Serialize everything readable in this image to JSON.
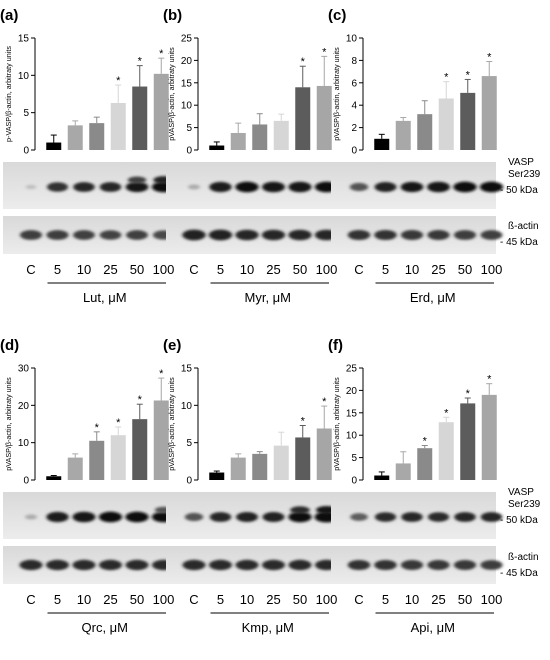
{
  "figure": {
    "labels_right": {
      "vasp_line1": "VASP",
      "vasp_line2": "Ser239",
      "kda50": "- 50 kDa",
      "actin": "ß-actin",
      "kda45": "- 45 kDa"
    },
    "x_categories": [
      "C",
      "5",
      "10",
      "25",
      "50",
      "100"
    ],
    "bar_colors": [
      "#000000",
      "#a8a8a8",
      "#8a8a8a",
      "#d6d6d6",
      "#5c5c5c",
      "#a6a6a6"
    ],
    "significance_mark": "*"
  },
  "chart_data": [
    {
      "panel": "(a)",
      "type": "bar",
      "ylabel": "p-VASP/β-actin, arbitraty units",
      "xlabel": "Lut, μM",
      "ylim": [
        0,
        15
      ],
      "yticks": [
        0,
        5,
        10,
        15
      ],
      "categories": [
        "C",
        "5",
        "10",
        "25",
        "50",
        "100"
      ],
      "values": [
        1.0,
        3.3,
        3.6,
        6.3,
        8.5,
        10.2
      ],
      "errors": [
        1.0,
        0.6,
        0.8,
        2.4,
        2.8,
        2.1
      ],
      "significant": [
        false,
        false,
        false,
        true,
        true,
        true
      ],
      "blot_vasp": [
        0.05,
        0.78,
        0.82,
        0.82,
        0.9,
        0.95
      ],
      "blot_vasp_upper": [
        0,
        0,
        0,
        0,
        0.7,
        0.85
      ],
      "blot_actin": [
        0.8,
        0.8,
        0.78,
        0.76,
        0.78,
        0.72
      ]
    },
    {
      "panel": "(b)",
      "type": "bar",
      "ylabel": "pVASP/β-actin, arbitraty units",
      "xlabel": "Myr, μM",
      "ylim": [
        0,
        25
      ],
      "yticks": [
        0,
        5,
        10,
        15,
        20,
        25
      ],
      "categories": [
        "C",
        "5",
        "10",
        "25",
        "50",
        "100"
      ],
      "values": [
        1.0,
        3.8,
        5.7,
        6.5,
        14.0,
        14.3
      ],
      "errors": [
        0.8,
        2.2,
        2.4,
        1.5,
        4.7,
        6.6
      ],
      "significant": [
        false,
        false,
        false,
        false,
        true,
        true
      ],
      "blot_vasp": [
        0.15,
        0.88,
        0.95,
        0.92,
        0.93,
        0.95
      ],
      "blot_vasp_upper": [
        0,
        0,
        0,
        0,
        0,
        0
      ],
      "blot_actin": [
        0.95,
        0.95,
        0.93,
        0.93,
        0.93,
        0.93
      ]
    },
    {
      "panel": "(c)",
      "type": "bar",
      "ylabel": "pVASP/β-actin, arbitraty units",
      "xlabel": "Erd, μM",
      "ylim": [
        0,
        10
      ],
      "yticks": [
        0,
        2,
        4,
        6,
        8,
        10
      ],
      "categories": [
        "C",
        "5",
        "10",
        "25",
        "50",
        "100"
      ],
      "values": [
        1.0,
        2.6,
        3.2,
        4.6,
        5.1,
        6.6
      ],
      "errors": [
        0.4,
        0.3,
        1.2,
        1.5,
        1.2,
        1.3
      ],
      "significant": [
        false,
        false,
        false,
        true,
        true,
        true
      ],
      "blot_vasp": [
        0.6,
        0.85,
        0.9,
        0.92,
        0.95,
        0.95
      ],
      "blot_vasp_upper": [
        0,
        0,
        0,
        0,
        0,
        0
      ],
      "blot_actin": [
        0.85,
        0.85,
        0.82,
        0.82,
        0.8,
        0.78
      ]
    },
    {
      "panel": "(d)",
      "type": "bar",
      "ylabel": "pVASP/β-actin, arbitraty units",
      "xlabel": "Qrc, μM",
      "ylim": [
        0,
        30
      ],
      "yticks": [
        0,
        10,
        20,
        30
      ],
      "categories": [
        "C",
        "5",
        "10",
        "25",
        "50",
        "100"
      ],
      "values": [
        1.0,
        6.0,
        10.5,
        12.0,
        16.3,
        21.3
      ],
      "errors": [
        0.2,
        1.0,
        2.4,
        2.2,
        4.0,
        6.0
      ],
      "significant": [
        false,
        false,
        true,
        true,
        true,
        true
      ],
      "blot_vasp": [
        0.15,
        0.88,
        0.92,
        0.95,
        0.95,
        0.95
      ],
      "blot_vasp_upper": [
        0,
        0,
        0,
        0,
        0,
        0.6
      ],
      "blot_actin": [
        0.9,
        0.9,
        0.9,
        0.9,
        0.9,
        0.9
      ]
    },
    {
      "panel": "(e)",
      "type": "bar",
      "ylabel": "pVASP/β-actin, arbitraty units",
      "xlabel": "Kmp, μM",
      "ylim": [
        0,
        15
      ],
      "yticks": [
        0,
        5,
        10,
        15
      ],
      "categories": [
        "C",
        "5",
        "10",
        "25",
        "50",
        "100"
      ],
      "values": [
        1.0,
        3.0,
        3.5,
        4.6,
        5.7,
        6.9
      ],
      "errors": [
        0.2,
        0.5,
        0.3,
        1.8,
        1.6,
        3.0
      ],
      "significant": [
        false,
        false,
        false,
        false,
        true,
        true
      ],
      "blot_vasp": [
        0.6,
        0.82,
        0.85,
        0.85,
        0.95,
        0.98
      ],
      "blot_vasp_upper": [
        0,
        0,
        0,
        0,
        0.8,
        0.9
      ],
      "blot_actin": [
        0.9,
        0.9,
        0.9,
        0.9,
        0.9,
        0.9
      ]
    },
    {
      "panel": "(f)",
      "type": "bar",
      "ylabel": "pVASP/β-actin, arbitraty units",
      "xlabel": "Api, μM",
      "ylim": [
        0,
        25
      ],
      "yticks": [
        0,
        5,
        10,
        15,
        20,
        25
      ],
      "categories": [
        "C",
        "5",
        "10",
        "25",
        "50",
        "100"
      ],
      "values": [
        1.0,
        3.7,
        7.1,
        12.9,
        17.1,
        19.0
      ],
      "errors": [
        0.8,
        2.6,
        0.6,
        1.1,
        1.2,
        2.5
      ],
      "significant": [
        false,
        false,
        true,
        true,
        true,
        true
      ],
      "blot_vasp": [
        0.55,
        0.8,
        0.82,
        0.8,
        0.82,
        0.82
      ],
      "blot_vasp_upper": [
        0,
        0,
        0,
        0,
        0,
        0
      ],
      "blot_actin": [
        0.85,
        0.85,
        0.82,
        0.82,
        0.82,
        0.8
      ]
    }
  ]
}
